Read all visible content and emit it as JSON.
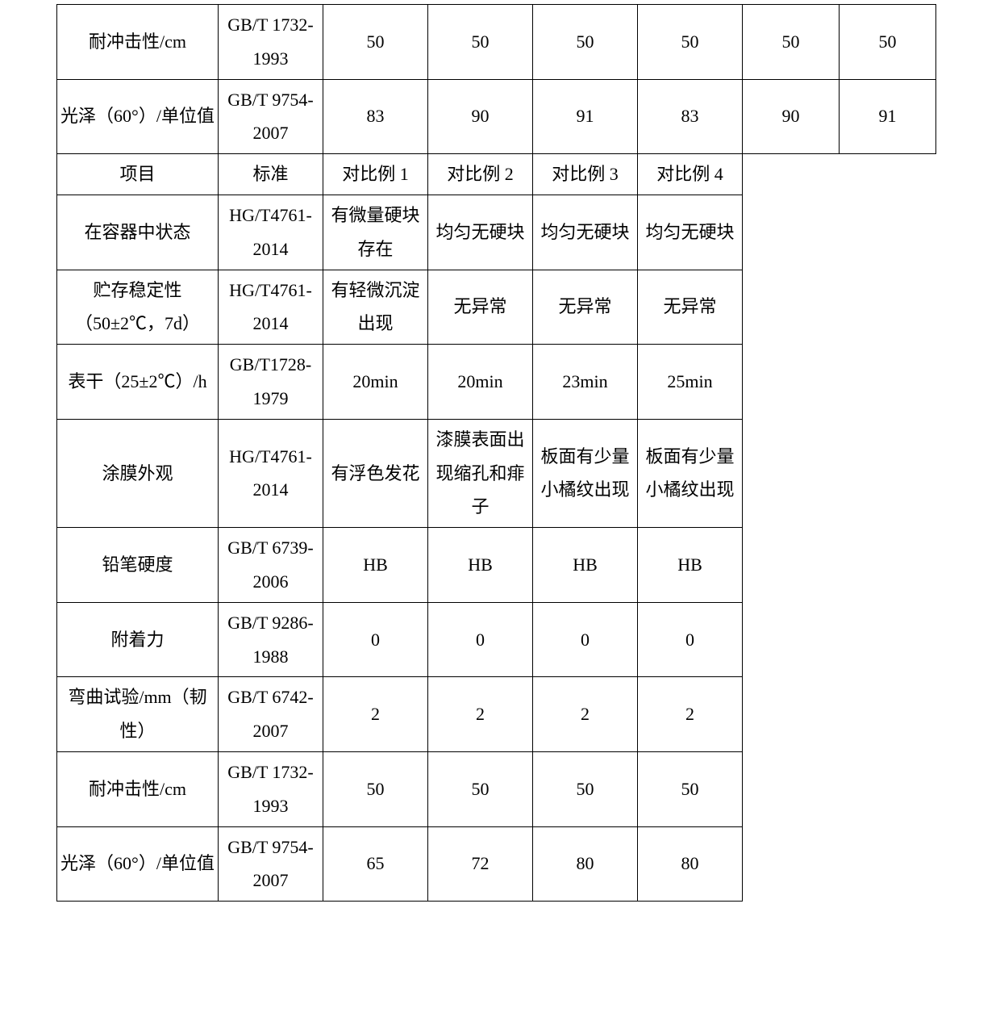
{
  "table1": {
    "rows": [
      {
        "label": "耐冲击性/cm",
        "std": "GB/T 1732-1993",
        "v": [
          "50",
          "50",
          "50",
          "50",
          "50",
          "50"
        ]
      },
      {
        "label": "光泽（60°）/单位值",
        "std": "GB/T 9754-2007",
        "v": [
          "83",
          "90",
          "91",
          "83",
          "90",
          "91"
        ]
      }
    ]
  },
  "table2": {
    "header": {
      "c0": "项目",
      "c1": "标准",
      "c2": "对比例 1",
      "c3": "对比例 2",
      "c4": "对比例 3",
      "c5": "对比例 4"
    },
    "rows": [
      {
        "label": "在容器中状态",
        "std": "HG/T4761-2014",
        "v": [
          "有微量硬块存在",
          "均匀无硬块",
          "均匀无硬块",
          "均匀无硬块"
        ]
      },
      {
        "label": "贮存稳定性（50±2℃，7d）",
        "std": "HG/T4761-2014",
        "v": [
          "有轻微沉淀出现",
          "无异常",
          "无异常",
          "无异常"
        ]
      },
      {
        "label": "表干（25±2℃）/h",
        "std": "GB/T1728-1979",
        "v": [
          "20min",
          "20min",
          "23min",
          "25min"
        ]
      },
      {
        "label": "涂膜外观",
        "std": "HG/T4761-2014",
        "v": [
          "有浮色发花",
          "漆膜表面出现缩孔和痱子",
          "板面有少量小橘纹出现",
          "板面有少量小橘纹出现"
        ]
      },
      {
        "label": "铅笔硬度",
        "std": "GB/T 6739-2006",
        "v": [
          "HB",
          "HB",
          "HB",
          "HB"
        ]
      },
      {
        "label": "附着力",
        "std": "GB/T 9286-1988",
        "v": [
          "0",
          "0",
          "0",
          "0"
        ]
      },
      {
        "label": "弯曲试验/mm（韧性）",
        "std": "GB/T 6742-2007",
        "v": [
          "2",
          "2",
          "2",
          "2"
        ]
      },
      {
        "label": "耐冲击性/cm",
        "std": "GB/T 1732-1993",
        "v": [
          "50",
          "50",
          "50",
          "50"
        ]
      },
      {
        "label": "光泽（60°）/单位值",
        "std": "GB/T 9754-2007",
        "v": [
          "65",
          "72",
          "80",
          "80"
        ]
      }
    ]
  }
}
